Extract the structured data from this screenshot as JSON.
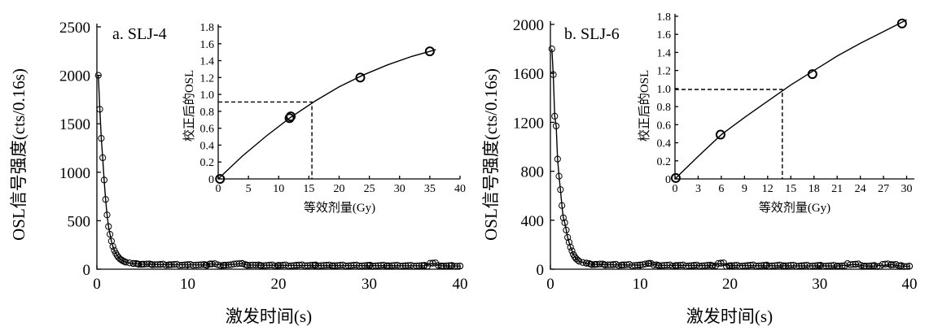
{
  "chart_data": [
    {
      "type": "scatter",
      "title": "a.  SLJ-4",
      "xlabel": "激发时间(s)",
      "ylabel": "OSL信号强度(cts/0.16s)",
      "xlim": [
        0,
        40
      ],
      "ylim": [
        0,
        2500
      ],
      "xticks": [
        "0",
        "10",
        "20",
        "30",
        "40"
      ],
      "yticks": [
        "0",
        "500",
        "1000",
        "1500",
        "2000",
        "2500"
      ],
      "series": [
        {
          "points": [
            [
              0.16,
              2000
            ],
            [
              0.32,
              1650
            ],
            [
              0.48,
              1350
            ],
            [
              0.64,
              1150
            ],
            [
              0.8,
              920
            ],
            [
              0.96,
              720
            ],
            [
              1.12,
              560
            ],
            [
              1.28,
              440
            ],
            [
              1.44,
              360
            ],
            [
              1.6,
              290
            ],
            [
              1.76,
              235
            ],
            [
              1.92,
              195
            ],
            [
              2.08,
              165
            ],
            [
              2.24,
              140
            ],
            [
              2.4,
              120
            ],
            [
              2.56,
              105
            ],
            [
              2.72,
              95
            ],
            [
              2.88,
              85
            ],
            [
              3.04,
              78
            ],
            [
              3.2,
              72
            ],
            [
              3.6,
              65
            ],
            [
              4.0,
              58
            ],
            [
              4.5,
              55
            ],
            [
              5.0,
              52
            ],
            [
              6.0,
              50
            ],
            [
              7.0,
              48
            ],
            [
              8.0,
              47
            ],
            [
              10.0,
              45
            ],
            [
              12.0,
              44
            ],
            [
              12.5,
              55
            ],
            [
              14.0,
              42
            ],
            [
              16.0,
              58
            ],
            [
              16.5,
              44
            ],
            [
              18.0,
              40
            ],
            [
              20.0,
              40
            ],
            [
              22.0,
              39
            ],
            [
              24.0,
              38
            ],
            [
              26.0,
              37
            ],
            [
              28.0,
              37
            ],
            [
              30.0,
              36
            ],
            [
              32.0,
              36
            ],
            [
              34.0,
              35
            ],
            [
              36.0,
              35
            ],
            [
              37.0,
              62
            ],
            [
              38.0,
              34
            ],
            [
              39.0,
              34
            ],
            [
              40.0,
              32
            ]
          ]
        }
      ],
      "fit": "exponential decay"
    },
    {
      "type": "scatter",
      "title": "b. SLJ-6",
      "xlabel": "激发时间(s)",
      "ylabel": "OSL信号强度(cts/0.16s)",
      "xlim": [
        0,
        40
      ],
      "ylim": [
        0,
        2000
      ],
      "xticks": [
        "0",
        "10",
        "20",
        "30",
        "40"
      ],
      "yticks": [
        "0",
        "400",
        "800",
        "1200",
        "1600",
        "2000"
      ],
      "series": [
        {
          "points": [
            [
              0.16,
              1800
            ],
            [
              0.32,
              1590
            ],
            [
              0.48,
              1250
            ],
            [
              0.64,
              1170
            ],
            [
              0.8,
              900
            ],
            [
              0.96,
              760
            ],
            [
              1.12,
              650
            ],
            [
              1.28,
              520
            ],
            [
              1.44,
              420
            ],
            [
              1.6,
              380
            ],
            [
              1.76,
              320
            ],
            [
              1.92,
              260
            ],
            [
              2.08,
              220
            ],
            [
              2.24,
              180
            ],
            [
              2.4,
              150
            ],
            [
              2.56,
              120
            ],
            [
              2.72,
              100
            ],
            [
              2.88,
              85
            ],
            [
              3.04,
              75
            ],
            [
              3.2,
              65
            ],
            [
              3.6,
              55
            ],
            [
              4.0,
              48
            ],
            [
              4.5,
              42
            ],
            [
              5.0,
              40
            ],
            [
              6.0,
              38
            ],
            [
              7.0,
              36
            ],
            [
              8.0,
              35
            ],
            [
              10.0,
              33
            ],
            [
              11.0,
              48
            ],
            [
              12.0,
              32
            ],
            [
              14.0,
              31
            ],
            [
              16.0,
              30
            ],
            [
              18.0,
              30
            ],
            [
              19.0,
              48
            ],
            [
              20.0,
              29
            ],
            [
              22.0,
              29
            ],
            [
              24.0,
              28
            ],
            [
              26.0,
              28
            ],
            [
              28.0,
              27
            ],
            [
              30.0,
              27
            ],
            [
              32.0,
              26
            ],
            [
              34.0,
              40
            ],
            [
              35.0,
              26
            ],
            [
              36.0,
              25
            ],
            [
              38.0,
              38
            ],
            [
              39.0,
              25
            ],
            [
              40.0,
              24
            ]
          ]
        }
      ],
      "fit": "exponential decay"
    },
    {
      "type": "scatter",
      "title": "",
      "xlabel": "等效剂量(Gy)",
      "ylabel": "校正后的OSL",
      "xlim": [
        0,
        40
      ],
      "ylim": [
        0,
        1.8
      ],
      "xticks": [
        "0",
        "5",
        "10",
        "15",
        "20",
        "25",
        "30",
        "35",
        "40"
      ],
      "yticks": [
        "0",
        "0.2",
        "0.4",
        "0.6",
        "0.8",
        "1.0",
        "1.2",
        "1.4",
        "1.6",
        "1.8"
      ],
      "points": [
        [
          0.3,
          0.0
        ],
        [
          11.8,
          0.72
        ],
        [
          12.0,
          0.74
        ],
        [
          23.5,
          1.2
        ],
        [
          35.0,
          1.51
        ]
      ],
      "curve": [
        [
          0,
          0
        ],
        [
          4,
          0.27
        ],
        [
          8,
          0.51
        ],
        [
          12,
          0.73
        ],
        [
          16,
          0.92
        ],
        [
          20,
          1.09
        ],
        [
          24,
          1.23
        ],
        [
          28,
          1.35
        ],
        [
          32,
          1.45
        ],
        [
          36,
          1.53
        ]
      ],
      "equivalent_dose": {
        "x": 15.5,
        "y": 0.91
      }
    },
    {
      "type": "scatter",
      "title": "",
      "xlabel": "等效剂量(Gy)",
      "ylabel": "校正后的OSL",
      "xlim": [
        0,
        31
      ],
      "ylim": [
        0,
        1.8
      ],
      "xticks": [
        "0",
        "3",
        "6",
        "9",
        "12",
        "15",
        "18",
        "21",
        "24",
        "27",
        "30"
      ],
      "yticks": [
        "0",
        "0.2",
        "0.4",
        "0.6",
        "0.8",
        "1.0",
        "1.2",
        "1.4",
        "1.6",
        "1.8"
      ],
      "points": [
        [
          0.1,
          0.01
        ],
        [
          5.9,
          0.49
        ],
        [
          17.8,
          1.16
        ],
        [
          29.4,
          1.72
        ]
      ],
      "curve": [
        [
          0,
          0
        ],
        [
          3,
          0.25
        ],
        [
          6,
          0.49
        ],
        [
          9,
          0.68
        ],
        [
          12,
          0.86
        ],
        [
          15,
          1.04
        ],
        [
          18,
          1.2
        ],
        [
          21,
          1.36
        ],
        [
          24,
          1.5
        ],
        [
          27,
          1.63
        ],
        [
          30,
          1.76
        ]
      ],
      "equivalent_dose": {
        "x": 13.9,
        "y": 0.99
      }
    }
  ]
}
